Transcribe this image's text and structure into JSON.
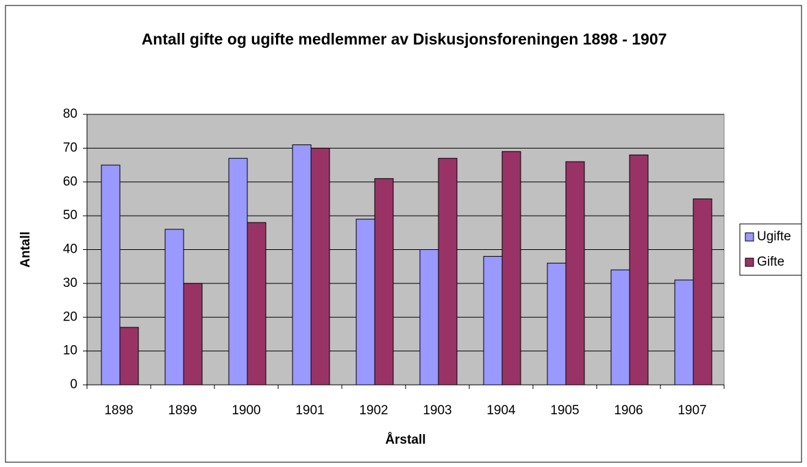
{
  "chart_data": {
    "type": "bar",
    "title": "Antall gifte og ugifte medlemmer av Diskusjonsforeningen 1898 - 1907",
    "x_label": "Årstall",
    "y_label": "Antall",
    "categories": [
      "1898",
      "1899",
      "1900",
      "1901",
      "1902",
      "1903",
      "1904",
      "1905",
      "1906",
      "1907"
    ],
    "series": [
      {
        "name": "Ugifte",
        "color": "#9999ff",
        "values": [
          65,
          46,
          67,
          71,
          49,
          40,
          38,
          36,
          34,
          31
        ]
      },
      {
        "name": "Gifte",
        "color": "#993366",
        "values": [
          17,
          30,
          48,
          70,
          61,
          67,
          69,
          66,
          68,
          55
        ]
      }
    ],
    "ylim": [
      0,
      80
    ],
    "yticks": [
      0,
      10,
      20,
      30,
      40,
      50,
      60,
      70,
      80
    ],
    "grid": true,
    "legend": "right"
  }
}
